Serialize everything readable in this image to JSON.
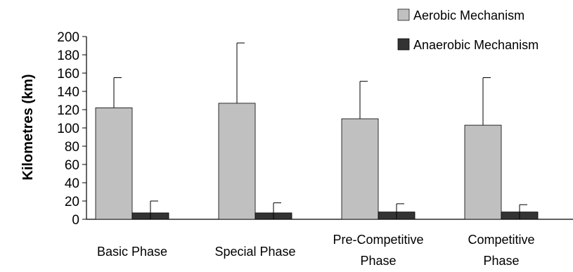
{
  "chart_data": {
    "type": "bar",
    "title": "",
    "xlabel": "",
    "ylabel": "Kilometres (km)",
    "ylim": [
      0,
      200
    ],
    "yticks": [
      0,
      20,
      40,
      60,
      80,
      100,
      120,
      140,
      160,
      180,
      200
    ],
    "grid": false,
    "legend_position": "top-right",
    "categories": [
      [
        "Basic Phase"
      ],
      [
        "Special Phase"
      ],
      [
        "Pre-Competitive",
        "Phase"
      ],
      [
        "Competitive",
        "Phase"
      ]
    ],
    "series": [
      {
        "name": "Aerobic Mechanism",
        "color": "#c0c0c0",
        "values": [
          122,
          127,
          110,
          103
        ],
        "error": [
          33,
          66,
          41,
          52
        ]
      },
      {
        "name": "Anaerobic Mechanism",
        "color": "#333333",
        "values": [
          7,
          7,
          8,
          8
        ],
        "error": [
          13,
          11,
          9,
          8
        ]
      }
    ]
  }
}
